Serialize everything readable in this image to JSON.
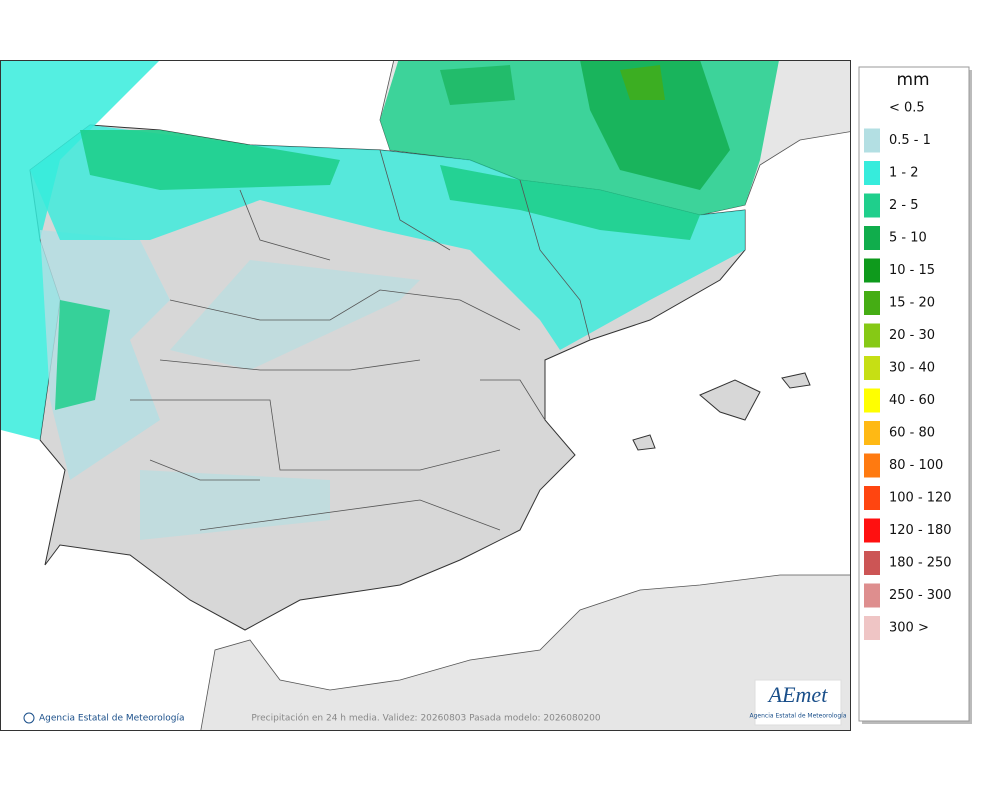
{
  "map": {
    "footer_left": "Agencia Estatal de Meteorología",
    "footer_center": "Precipitación en 24 h media. Validez: 20260803 Pasada modelo: 2026080200",
    "logo": "AEmet",
    "logo_subtitle": "Agencia Estatal de Meteorología"
  },
  "legend": {
    "title": "mm",
    "items": [
      {
        "label": "< 0.5",
        "color": null
      },
      {
        "label": "0.5 - 1",
        "color": "#b3dfe3"
      },
      {
        "label": "1 - 2",
        "color": "#36ecdc"
      },
      {
        "label": "2 - 5",
        "color": "#1fcf8c"
      },
      {
        "label": "5 - 10",
        "color": "#10ad4c"
      },
      {
        "label": "10 - 15",
        "color": "#0e9a1c"
      },
      {
        "label": "15 - 20",
        "color": "#45ad14"
      },
      {
        "label": "20 - 30",
        "color": "#86c915"
      },
      {
        "label": "30 - 40",
        "color": "#c6df14"
      },
      {
        "label": "40 - 60",
        "color": "#ffff00"
      },
      {
        "label": "60 - 80",
        "color": "#ffb914"
      },
      {
        "label": "80 - 100",
        "color": "#ff7a10"
      },
      {
        "label": "100 - 120",
        "color": "#ff4510"
      },
      {
        "label": "120 - 180",
        "color": "#ff1010"
      },
      {
        "label": "180 - 250",
        "color": "#cc5555"
      },
      {
        "label": "250 - 300",
        "color": "#de8e8e"
      },
      {
        "label": "300 >",
        "color": "#efc5c5"
      }
    ]
  }
}
